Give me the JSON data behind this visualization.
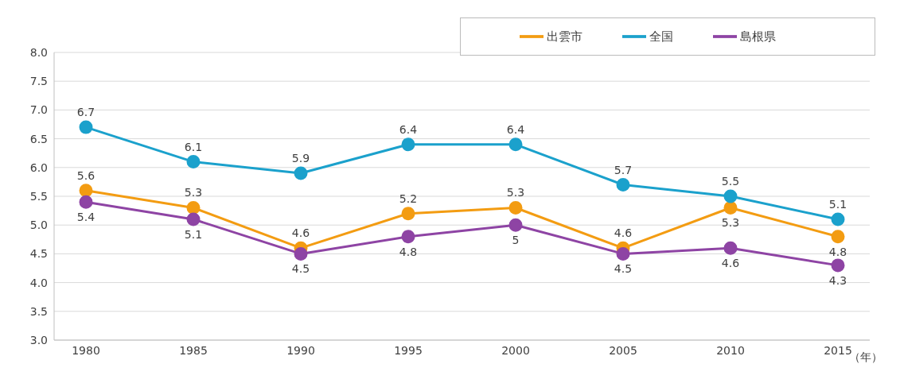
{
  "chart_data": {
    "type": "line",
    "xlabel": "（年）",
    "categories": [
      "1980",
      "1985",
      "1990",
      "1995",
      "2000",
      "2005",
      "2010",
      "2015"
    ],
    "series": [
      {
        "name": "出雲市",
        "color": "#f39c12",
        "values": [
          5.6,
          5.3,
          4.6,
          5.2,
          5.3,
          4.6,
          5.3,
          4.8
        ],
        "value_labels": [
          "5.6",
          "5.3",
          "4.6",
          "5.2",
          "5.3",
          "4.6",
          "5.3",
          "4.8"
        ]
      },
      {
        "name": "全国",
        "color": "#1ba1cc",
        "values": [
          6.7,
          6.1,
          5.9,
          6.4,
          6.4,
          5.7,
          5.5,
          5.1
        ],
        "value_labels": [
          "6.7",
          "6.1",
          "5.9",
          "6.4",
          "6.4",
          "5.7",
          "5.5",
          "5.1"
        ]
      },
      {
        "name": "島根県",
        "color": "#8e44a4",
        "values": [
          5.4,
          5.1,
          4.5,
          4.8,
          5,
          4.5,
          4.6,
          4.3
        ],
        "value_labels": [
          "5.4",
          "5.1",
          "4.5",
          "4.8",
          "5",
          "4.5",
          "4.6",
          "4.3"
        ]
      }
    ],
    "ylim": [
      3,
      8
    ],
    "yticks": [
      {
        "value": 3,
        "label": "3.0"
      },
      3.5,
      {
        "value": 4,
        "label": "4.0"
      },
      4.5,
      {
        "value": 5,
        "label": "5.0"
      },
      5.5,
      {
        "value": 6,
        "label": "6.0"
      },
      6.5,
      {
        "value": 7,
        "label": "7.0"
      },
      7.5,
      {
        "value": 8,
        "label": "8.0"
      }
    ],
    "grid": "y",
    "legend": "top right",
    "marker": "circle",
    "line_style": "solid"
  }
}
